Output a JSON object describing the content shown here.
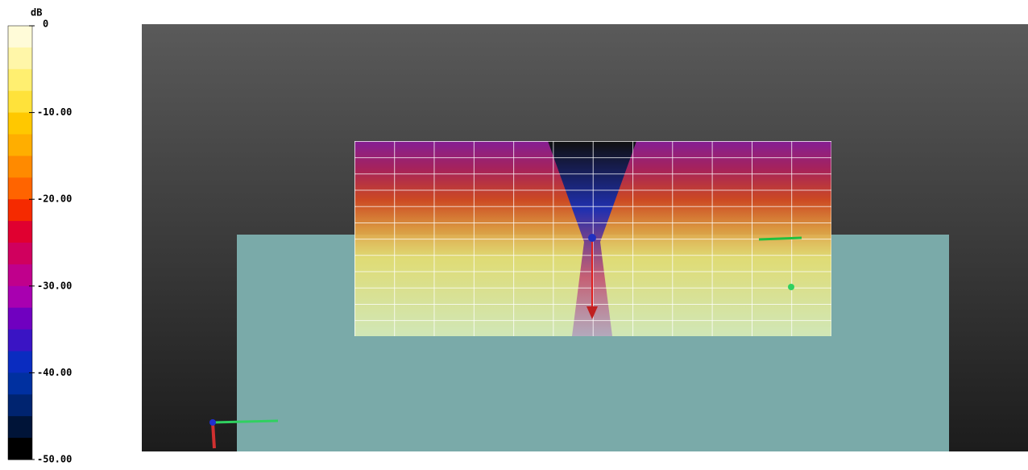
{
  "colorbar": {
    "unit": "dB",
    "lim": [
      -50,
      0
    ],
    "ticks": [
      {
        "value": 0,
        "label": "0"
      },
      {
        "value": -10,
        "label": "-10.00"
      },
      {
        "value": -20,
        "label": "-20.00"
      },
      {
        "value": -30,
        "label": "-30.00"
      },
      {
        "value": -40,
        "label": "-40.00"
      },
      {
        "value": -50,
        "label": "-50.00"
      }
    ],
    "colors": [
      "#fffbd8",
      "#fff6a8",
      "#ffef70",
      "#ffe23a",
      "#ffc800",
      "#ffae00",
      "#ff8a00",
      "#ff6400",
      "#f52a00",
      "#e00030",
      "#d0005e",
      "#c0008c",
      "#a800b0",
      "#7000c0",
      "#3a14c4",
      "#0a2cc0",
      "#0030a0",
      "#002470",
      "#001438",
      "#000000"
    ]
  }
}
